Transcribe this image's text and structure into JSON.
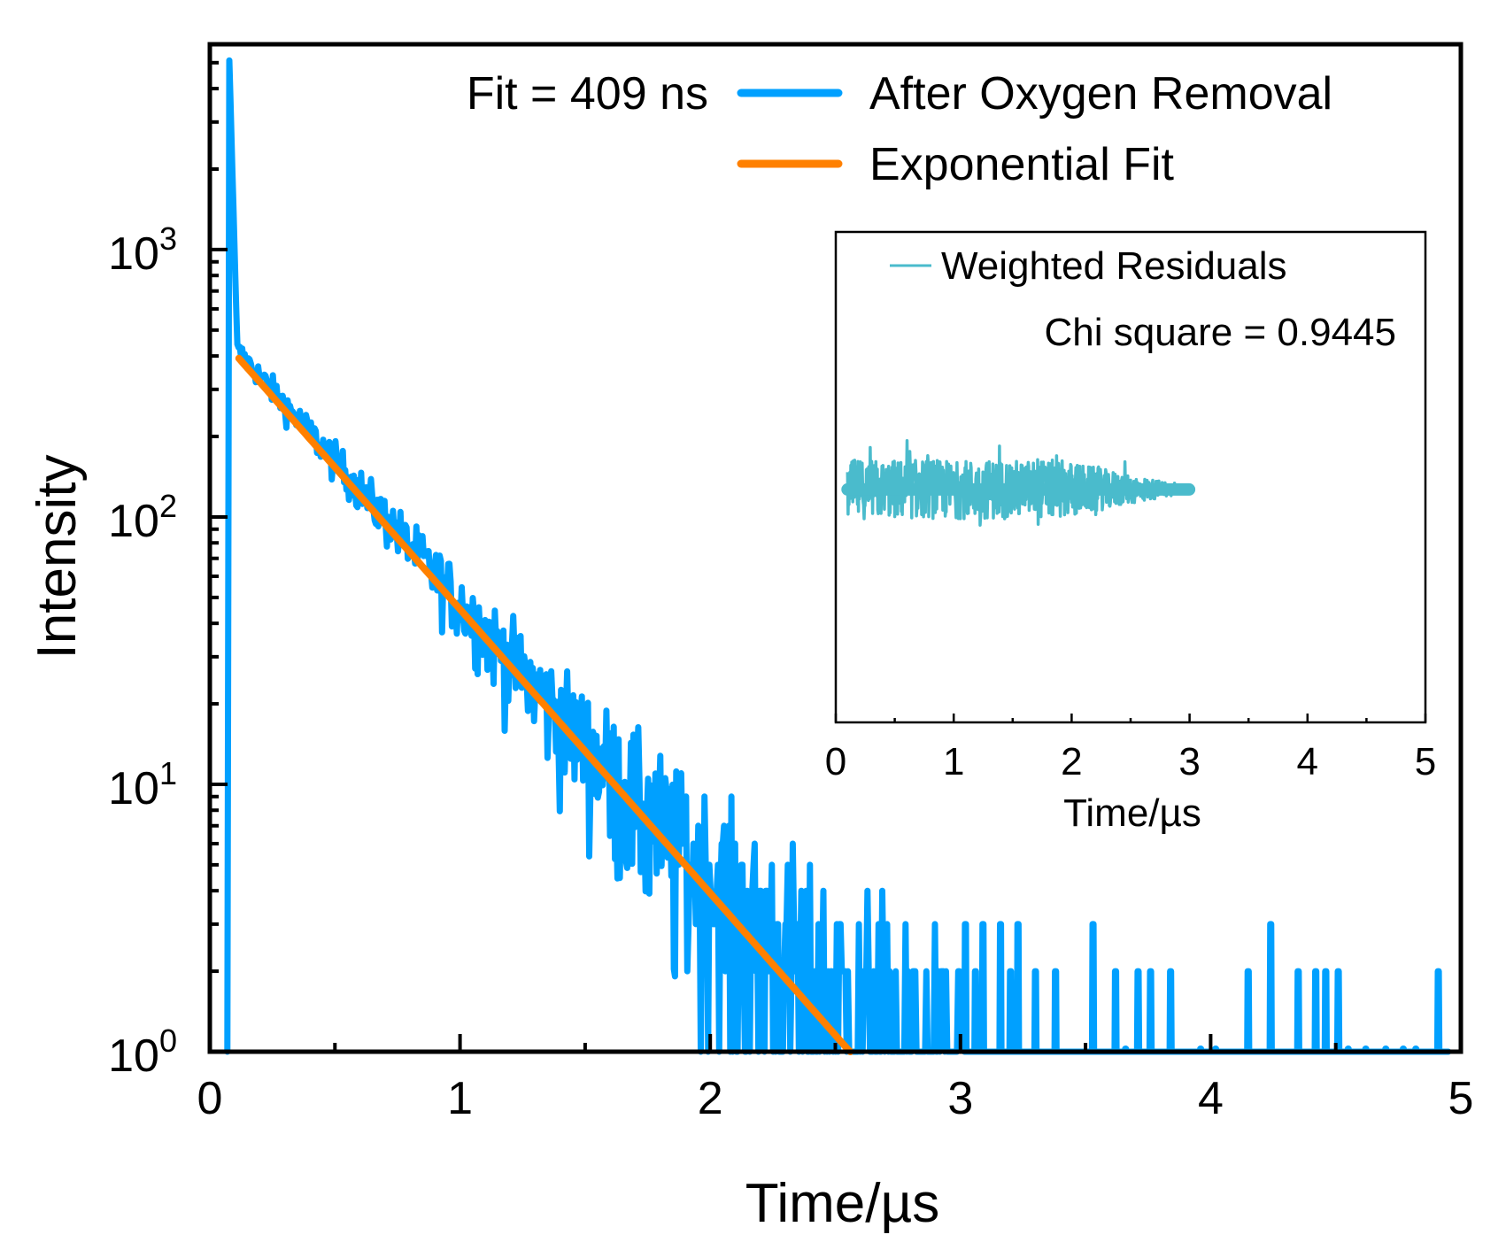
{
  "chart_data": [
    {
      "id": "main",
      "type": "line",
      "title": "",
      "xlabel": "Time/µs",
      "ylabel": "Intensity",
      "xscale": "linear",
      "yscale": "log",
      "xlim": [
        0,
        5
      ],
      "ylim": [
        1,
        5860
      ],
      "xticks": [
        0,
        1,
        2,
        3,
        4,
        5
      ],
      "xtick_labels": [
        "0",
        "1",
        "2",
        "3",
        "4",
        "5"
      ],
      "xminor_ticks": [
        0.5,
        1.5,
        2.5,
        3.5,
        4.5
      ],
      "yticks": [
        1,
        10,
        100,
        1000
      ],
      "ytick_labels": [
        {
          "base": "10",
          "exp": "0"
        },
        {
          "base": "10",
          "exp": "1"
        },
        {
          "base": "10",
          "exp": "2"
        },
        {
          "base": "10",
          "exp": "3"
        }
      ],
      "grid": false,
      "legend_position": "top-right",
      "annotation": "Fit = 409 ns",
      "series": [
        {
          "name": "After Oxygen Removal",
          "color": "#00A0FF",
          "kind": "measured decay (noisy)",
          "peak": {
            "x": 0.078,
            "y": 5100
          },
          "rise_start_x": 0.07,
          "tail_start": {
            "x": 0.11,
            "y": 420
          },
          "lifetime_us": 0.409,
          "noise_floor": 1,
          "sparse_counts_after_3us": [
            {
              "x": 3.02,
              "y": 3
            },
            {
              "x": 3.09,
              "y": 3
            },
            {
              "x": 3.16,
              "y": 3
            },
            {
              "x": 3.23,
              "y": 3
            },
            {
              "x": 3.53,
              "y": 3
            },
            {
              "x": 4.24,
              "y": 3
            },
            {
              "x": 3.06,
              "y": 2
            },
            {
              "x": 3.2,
              "y": 2
            },
            {
              "x": 3.3,
              "y": 2
            },
            {
              "x": 3.38,
              "y": 2
            },
            {
              "x": 3.62,
              "y": 2
            },
            {
              "x": 3.71,
              "y": 2
            },
            {
              "x": 3.76,
              "y": 2
            },
            {
              "x": 3.84,
              "y": 2
            },
            {
              "x": 4.15,
              "y": 2
            },
            {
              "x": 4.35,
              "y": 2
            },
            {
              "x": 4.42,
              "y": 2
            },
            {
              "x": 4.46,
              "y": 2
            },
            {
              "x": 4.51,
              "y": 2
            },
            {
              "x": 4.91,
              "y": 2
            }
          ]
        },
        {
          "name": "Exponential Fit",
          "color": "#FF8000",
          "kind": "single exponential",
          "x_start": 0.116,
          "y_start": 392,
          "lifetime_us": 0.409,
          "x_end": 2.56,
          "y_end": 1
        }
      ]
    },
    {
      "id": "inset",
      "type": "line",
      "title": "",
      "xlabel": "Time/µs",
      "ylabel": "",
      "xlim": [
        0,
        5
      ],
      "ylim": [
        -1,
        1
      ],
      "xticks": [
        0,
        1,
        2,
        3,
        4,
        5
      ],
      "xtick_labels": [
        "0",
        "1",
        "2",
        "3",
        "4",
        "5"
      ],
      "xminor_ticks": [
        0.5,
        1.5,
        2.5,
        3.5,
        4.5
      ],
      "yticks": [],
      "grid": false,
      "legend_position": "top-right",
      "annotation": "Chi square = 0.9445",
      "series": [
        {
          "name": "Weighted Residuals",
          "color": "#4ABBCC",
          "x_range": [
            0.1,
            3.0
          ],
          "center": 0.0,
          "spread": 0.12
        }
      ]
    }
  ]
}
